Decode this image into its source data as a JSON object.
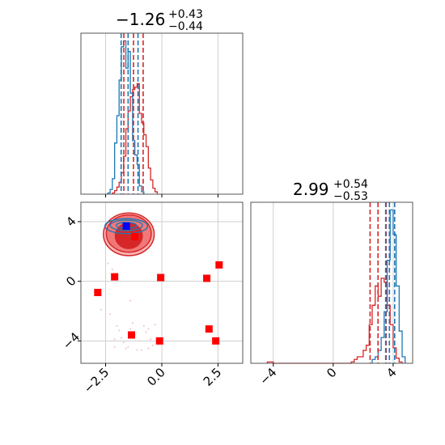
{
  "chart_data": {
    "type": "corner",
    "colors": {
      "red": "#d62728",
      "blue": "#1f77b4",
      "marker_red": "#ff0000",
      "marker_blue": "#0000ff",
      "grid": "#cfcfcf"
    },
    "titles": [
      {
        "main": "−1.26",
        "sup": "+0.43",
        "sub": "−0.44"
      },
      {
        "main": "2.99",
        "sup": "+0.54",
        "sub": "−0.53"
      }
    ],
    "x_param": {
      "range": [
        -3.6,
        3.6
      ],
      "ticks": [
        -2.5,
        0.0,
        2.5
      ],
      "tick_labels": [
        "−2.5",
        "0.0",
        "2.5"
      ]
    },
    "y_param": {
      "range": [
        -5.5,
        5.3
      ],
      "ticks": [
        4,
        0,
        -4
      ],
      "tick_labels": [
        "4",
        "0",
        "−4"
      ]
    },
    "y_marginal": {
      "range": [
        -5.5,
        5.3
      ],
      "ticks": [
        -4,
        0,
        4
      ],
      "tick_labels": [
        "−4",
        "0",
        "4"
      ]
    },
    "x_marginal": {
      "red_hist": {
        "edges": [
          -2.2,
          -2.1,
          -2.0,
          -1.9,
          -1.8,
          -1.7,
          -1.6,
          -1.5,
          -1.4,
          -1.3,
          -1.2,
          -1.1,
          -1.0,
          -0.9,
          -0.8,
          -0.7,
          -0.6,
          -0.5,
          -0.4,
          -0.3,
          -0.2
        ],
        "counts": [
          1,
          3,
          6,
          10,
          18,
          32,
          55,
          70,
          82,
          88,
          90,
          93,
          68,
          60,
          50,
          40,
          22,
          12,
          5,
          2
        ]
      },
      "blue_hist": {
        "edges": [
          -2.4,
          -2.3,
          -2.2,
          -2.1,
          -2.0,
          -1.9,
          -1.8,
          -1.7,
          -1.6,
          -1.5,
          -1.4,
          -1.3,
          -1.2,
          -1.1,
          -1.0,
          -0.9,
          -0.8
        ],
        "counts": [
          1,
          4,
          13,
          43,
          66,
          96,
          124,
          129,
          106,
          120,
          85,
          45,
          33,
          25,
          7,
          2
        ]
      },
      "red_quantiles": [
        -1.69,
        -1.26,
        -0.83
      ],
      "blue_quantiles": [
        -1.81,
        -1.5,
        -1.06
      ]
    },
    "y_marginal_hists": {
      "red_hist": {
        "edges": [
          -4.4,
          -4.2,
          -4.0,
          -3.8,
          -3.6,
          -3.4,
          -3.2,
          -3.0,
          -2.8,
          -2.6,
          -2.4,
          -2.2,
          -2.0,
          -1.8,
          -1.6,
          -1.4,
          -1.2,
          -1.0,
          -0.8,
          -0.6,
          -0.4,
          -0.2,
          0.0,
          0.2,
          0.4,
          0.6,
          0.8,
          1.0,
          1.2,
          1.4,
          1.6,
          1.8,
          2.0,
          2.2,
          2.4,
          2.6,
          2.8,
          3.0,
          3.2,
          3.4,
          3.6,
          3.8,
          4.0,
          4.2,
          4.4,
          4.6
        ],
        "counts": [
          1,
          1,
          0,
          0,
          0,
          0,
          0,
          0,
          0,
          0,
          0,
          0,
          0,
          0,
          0,
          0,
          0,
          0,
          0,
          0,
          0,
          0,
          0,
          0,
          0,
          0,
          0,
          0,
          1,
          3,
          5,
          5,
          10,
          14,
          30,
          45,
          60,
          52,
          66,
          63,
          45,
          30,
          12,
          4,
          1
        ]
      },
      "blue_hist": {
        "edges": [
          2.6,
          2.8,
          3.0,
          3.2,
          3.4,
          3.6,
          3.8,
          4.0,
          4.2,
          4.4,
          4.6,
          4.8
        ],
        "counts": [
          3,
          5,
          10,
          20,
          40,
          80,
          119,
          100,
          60,
          25,
          5
        ]
      },
      "red_quantiles": [
        2.46,
        2.99,
        3.53
      ],
      "blue_quantiles": [
        3.5,
        3.75,
        4.1
      ]
    },
    "joint": {
      "red_contours": [
        {
          "cx": -1.47,
          "cy": 3.15,
          "rx": 1.13,
          "ry": 1.43,
          "fill": "#f7b6b6",
          "stroke": "#d62728"
        },
        {
          "cx": -1.47,
          "cy": 3.2,
          "rx": 1.0,
          "ry": 1.25,
          "fill": "#f17878",
          "stroke": "#d62728"
        },
        {
          "cx": -1.47,
          "cy": 3.05,
          "rx": 0.6,
          "ry": 0.85,
          "fill": "#d62728",
          "stroke": "#d62728"
        }
      ],
      "blue_contours": [
        {
          "cx": -1.58,
          "cy": 3.7,
          "rx": 0.95,
          "ry": 0.5
        },
        {
          "cx": -1.58,
          "cy": 3.75,
          "rx": 0.72,
          "ry": 0.35
        },
        {
          "cx": -1.58,
          "cy": 3.75,
          "rx": 0.45,
          "ry": 0.2
        }
      ],
      "scatter_points": [
        [
          -2.3,
          -2.2
        ],
        [
          -2.0,
          -3.0
        ],
        [
          -1.8,
          -3.8
        ],
        [
          -1.7,
          -4.1
        ],
        [
          -1.5,
          -4.4
        ],
        [
          -1.4,
          -3.2
        ],
        [
          -1.2,
          -3.6
        ],
        [
          -1.0,
          -4.0
        ],
        [
          -0.9,
          -4.6
        ],
        [
          -0.7,
          -3.4
        ],
        [
          -0.5,
          -3.9
        ],
        [
          -0.4,
          -4.3
        ],
        [
          -0.3,
          -2.9
        ],
        [
          -1.6,
          -4.5
        ],
        [
          -1.9,
          -3.3
        ],
        [
          -1.1,
          -4.6
        ],
        [
          -0.8,
          -3.0
        ],
        [
          -2.1,
          -3.9
        ],
        [
          -1.3,
          -2.8
        ],
        [
          -0.6,
          -4.5
        ],
        [
          -2.2,
          0.8
        ],
        [
          -2.4,
          1.2
        ],
        [
          -1.9,
          2.1
        ],
        [
          -2.5,
          2.5
        ],
        [
          -2.7,
          -1.9
        ],
        [
          -2.1,
          -4.4
        ],
        [
          -1.4,
          -1.3
        ],
        [
          -0.6,
          -3.2
        ]
      ],
      "red_markers": [
        [
          -1.2,
          3.0
        ],
        [
          -2.1,
          0.3
        ],
        [
          -2.85,
          -0.75
        ],
        [
          -0.05,
          0.25
        ],
        [
          2.0,
          0.2
        ],
        [
          2.55,
          1.1
        ],
        [
          -1.35,
          -3.6
        ],
        [
          -0.1,
          -4.0
        ],
        [
          2.1,
          -3.2
        ],
        [
          2.4,
          -4.0
        ]
      ],
      "blue_marker": [
        -1.58,
        3.7
      ]
    }
  }
}
